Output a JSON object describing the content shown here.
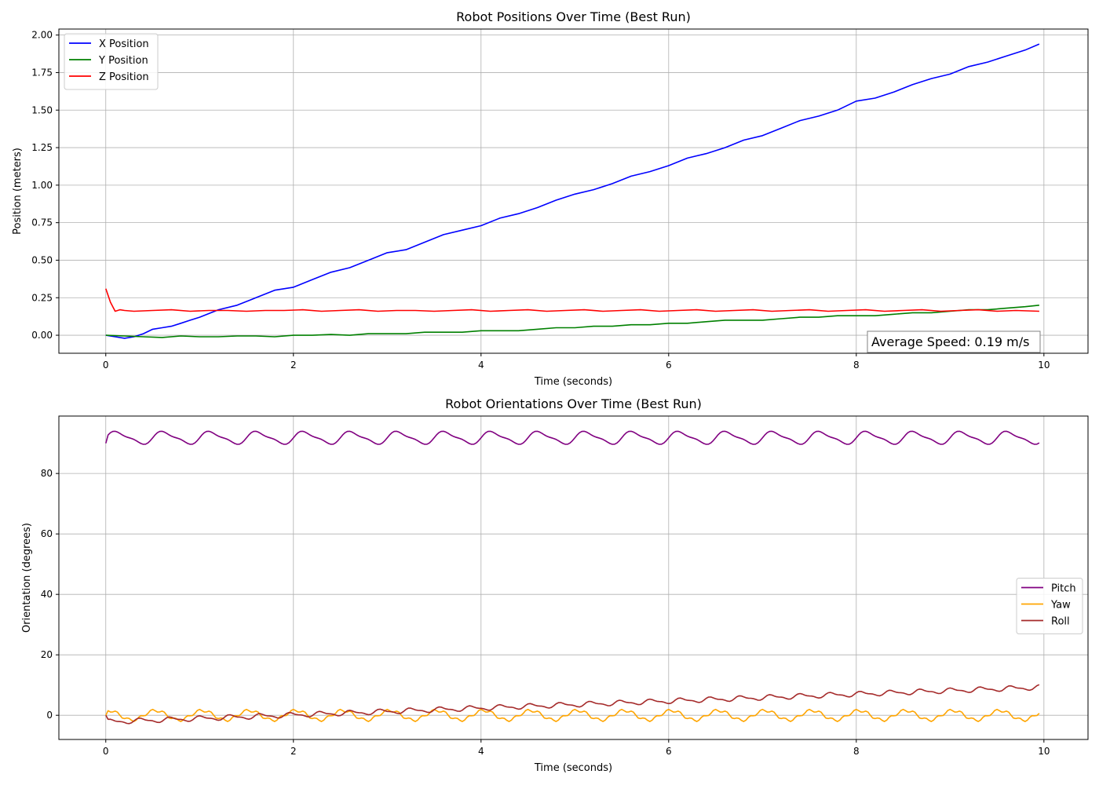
{
  "chart_data": [
    {
      "type": "line",
      "title": "Robot Positions Over Time (Best Run)",
      "xlabel": "Time (seconds)",
      "ylabel": "Position (meters)",
      "xlim": [
        -0.5,
        10.47
      ],
      "ylim": [
        -0.12,
        2.04
      ],
      "xticks": [
        0,
        2,
        4,
        6,
        8,
        10
      ],
      "xtick_labels": [
        "0",
        "2",
        "4",
        "6",
        "8",
        "10"
      ],
      "yticks": [
        0,
        0.25,
        0.5,
        0.75,
        1.0,
        1.25,
        1.5,
        1.75,
        2.0
      ],
      "ytick_labels": [
        "0.00",
        "0.25",
        "0.50",
        "0.75",
        "1.00",
        "1.25",
        "1.50",
        "1.75",
        "2.00"
      ],
      "grid": true,
      "legend_position": "top-left",
      "annotation": "Average Speed: 0.19 m/s",
      "series": [
        {
          "name": "X Position",
          "color": "#0000ff",
          "x": [
            0,
            0.1,
            0.2,
            0.3,
            0.4,
            0.5,
            0.6,
            0.7,
            0.8,
            0.9,
            1.0,
            1.2,
            1.4,
            1.6,
            1.8,
            2.0,
            2.2,
            2.4,
            2.6,
            2.8,
            3.0,
            3.2,
            3.4,
            3.6,
            3.8,
            4.0,
            4.2,
            4.4,
            4.6,
            4.8,
            5.0,
            5.2,
            5.4,
            5.6,
            5.8,
            6.0,
            6.2,
            6.4,
            6.6,
            6.8,
            7.0,
            7.2,
            7.4,
            7.6,
            7.8,
            8.0,
            8.2,
            8.4,
            8.6,
            8.8,
            9.0,
            9.2,
            9.4,
            9.6,
            9.8,
            9.95
          ],
          "y": [
            0.0,
            -0.01,
            -0.02,
            -0.01,
            0.01,
            0.04,
            0.05,
            0.06,
            0.08,
            0.1,
            0.12,
            0.17,
            0.2,
            0.25,
            0.3,
            0.32,
            0.37,
            0.42,
            0.45,
            0.5,
            0.55,
            0.57,
            0.62,
            0.67,
            0.7,
            0.73,
            0.78,
            0.81,
            0.85,
            0.9,
            0.94,
            0.97,
            1.01,
            1.06,
            1.09,
            1.13,
            1.18,
            1.21,
            1.25,
            1.3,
            1.33,
            1.38,
            1.43,
            1.46,
            1.5,
            1.56,
            1.58,
            1.62,
            1.67,
            1.71,
            1.74,
            1.79,
            1.82,
            1.86,
            1.9,
            1.94
          ]
        },
        {
          "name": "Y Position",
          "color": "#008000",
          "x": [
            0,
            0.2,
            0.4,
            0.6,
            0.8,
            1.0,
            1.2,
            1.4,
            1.6,
            1.8,
            2.0,
            2.2,
            2.4,
            2.6,
            2.8,
            3.0,
            3.2,
            3.4,
            3.6,
            3.8,
            4.0,
            4.2,
            4.4,
            4.6,
            4.8,
            5.0,
            5.2,
            5.4,
            5.6,
            5.8,
            6.0,
            6.2,
            6.4,
            6.6,
            6.8,
            7.0,
            7.2,
            7.4,
            7.6,
            7.8,
            8.0,
            8.2,
            8.4,
            8.6,
            8.8,
            9.0,
            9.2,
            9.4,
            9.6,
            9.8,
            9.95
          ],
          "y": [
            0.0,
            -0.005,
            -0.01,
            -0.015,
            -0.005,
            -0.01,
            -0.01,
            -0.005,
            -0.005,
            -0.01,
            0.0,
            0.0,
            0.005,
            0.0,
            0.01,
            0.01,
            0.01,
            0.02,
            0.02,
            0.02,
            0.03,
            0.03,
            0.03,
            0.04,
            0.05,
            0.05,
            0.06,
            0.06,
            0.07,
            0.07,
            0.08,
            0.08,
            0.09,
            0.1,
            0.1,
            0.1,
            0.11,
            0.12,
            0.12,
            0.13,
            0.13,
            0.13,
            0.14,
            0.15,
            0.15,
            0.16,
            0.17,
            0.17,
            0.18,
            0.19,
            0.2
          ]
        },
        {
          "name": "Z Position",
          "color": "#ff0000",
          "x": [
            0,
            0.05,
            0.1,
            0.15,
            0.2,
            0.3,
            0.5,
            0.7,
            0.9,
            1.1,
            1.3,
            1.5,
            1.7,
            1.9,
            2.1,
            2.3,
            2.5,
            2.7,
            2.9,
            3.1,
            3.3,
            3.5,
            3.7,
            3.9,
            4.1,
            4.3,
            4.5,
            4.7,
            4.9,
            5.1,
            5.3,
            5.5,
            5.7,
            5.9,
            6.1,
            6.3,
            6.5,
            6.7,
            6.9,
            7.1,
            7.3,
            7.5,
            7.7,
            7.9,
            8.1,
            8.3,
            8.5,
            8.7,
            8.9,
            9.1,
            9.3,
            9.5,
            9.7,
            9.95
          ],
          "y": [
            0.31,
            0.22,
            0.16,
            0.17,
            0.165,
            0.16,
            0.165,
            0.17,
            0.16,
            0.165,
            0.165,
            0.16,
            0.165,
            0.165,
            0.17,
            0.16,
            0.165,
            0.17,
            0.16,
            0.165,
            0.165,
            0.16,
            0.165,
            0.17,
            0.16,
            0.165,
            0.17,
            0.16,
            0.165,
            0.17,
            0.16,
            0.165,
            0.17,
            0.16,
            0.165,
            0.17,
            0.16,
            0.165,
            0.17,
            0.16,
            0.165,
            0.17,
            0.16,
            0.165,
            0.17,
            0.16,
            0.165,
            0.17,
            0.16,
            0.165,
            0.17,
            0.16,
            0.165,
            0.16
          ]
        }
      ]
    },
    {
      "type": "line",
      "title": "Robot Orientations Over Time (Best Run)",
      "xlabel": "Time (seconds)",
      "ylabel": "Orientation (degrees)",
      "xlim": [
        -0.5,
        10.47
      ],
      "ylim": [
        -8,
        99
      ],
      "xticks": [
        0,
        2,
        4,
        6,
        8,
        10
      ],
      "xtick_labels": [
        "0",
        "2",
        "4",
        "6",
        "8",
        "10"
      ],
      "yticks": [
        0,
        20,
        40,
        60,
        80
      ],
      "ytick_labels": [
        "0",
        "20",
        "40",
        "60",
        "80"
      ],
      "grid": true,
      "legend_position": "center-right",
      "series": [
        {
          "name": "Pitch",
          "color": "#800080",
          "periodic": {
            "t_end": 9.95,
            "dt": 0.025,
            "mean": 91.8,
            "amp": 1.9,
            "period": 0.5,
            "phase": 0.0,
            "amp2": 0.6,
            "period2": 0.25,
            "trend": 0
          }
        },
        {
          "name": "Yaw",
          "color": "#ffa500",
          "periodic": {
            "t_end": 9.95,
            "dt": 0.025,
            "mean": 0.0,
            "amp": 1.6,
            "period": 0.5,
            "phase": 1.2,
            "amp2": 0.5,
            "period2": 0.125,
            "trend": 0
          }
        },
        {
          "name": "Roll",
          "color": "#a52a2a",
          "periodic": {
            "t_end": 9.95,
            "dt": 0.025,
            "mean": -2.2,
            "amp": 0.7,
            "period": 0.32,
            "phase": 0.4,
            "amp2": 0.3,
            "period2": 0.16,
            "trend": 1.15
          }
        }
      ]
    }
  ]
}
